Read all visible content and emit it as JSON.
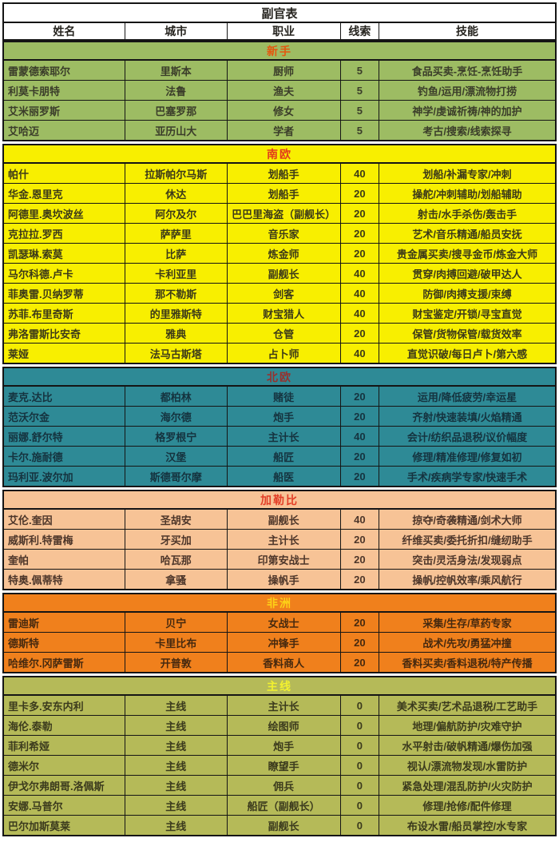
{
  "title": "副官表",
  "columns": [
    "姓名",
    "城市",
    "职业",
    "线索",
    "技能"
  ],
  "column_keys": [
    "cell-name",
    "cell-city",
    "cell-occupation",
    "cell-clue",
    "cell-skill"
  ],
  "border_color": "#151515",
  "sections": [
    {
      "name": "新手",
      "bg": "#9dbc63",
      "name_color": "#e4570f",
      "text_color": "#3b3d2a",
      "rows": [
        [
          "雷蒙德索耶尔",
          "里斯本",
          "厨师",
          "5",
          "食品买卖-烹饪-烹饪助手"
        ],
        [
          "利莫卡朋特",
          "法鲁",
          "渔夫",
          "5",
          "钓鱼/运用/漂流物打捞"
        ],
        [
          "艾米丽罗斯",
          "巴塞罗那",
          "修女",
          "5",
          "神学/虔诚祈祷/神的加护"
        ],
        [
          "艾哈迈",
          "亚历山大",
          "学者",
          "5",
          "考古/搜索/线索探寻"
        ]
      ]
    },
    {
      "name": "南欧",
      "bg": "#f8ef00",
      "name_color": "#e23c1c",
      "text_color": "#3c3a18",
      "rows": [
        [
          "帕什",
          "拉斯帕尔马斯",
          "划船手",
          "40",
          "划船/补漏专家/冲刺"
        ],
        [
          "华金.恩里克",
          "休达",
          "划船手",
          "20",
          "操舵/冲刺辅助/划船辅助"
        ],
        [
          "阿德里.奥坎波丝",
          "阿尔及尔",
          "巴巴里海盗（副舰长）",
          "20",
          "射击/水手杀伤/轰击手"
        ],
        [
          "克拉拉.罗西",
          "萨萨里",
          "音乐家",
          "20",
          "艺术/音乐精通/船员安抚"
        ],
        [
          "凯瑟琳.索莫",
          "比萨",
          "炼金师",
          "20",
          "贵金属买卖/搜寻金币/炼金大师"
        ],
        [
          "马尔科德.卢卡",
          "卡利亚里",
          "副舰长",
          "40",
          "贯穿/肉搏回避/破甲达人"
        ],
        [
          "菲奥雷.贝纳罗蒂",
          "那不勒斯",
          "剑客",
          "40",
          "防御/肉搏支援/束缚"
        ],
        [
          "苏菲.布里奇斯",
          "的里雅斯特",
          "财宝猎人",
          "40",
          "财宝鉴定/开锁/寻宝直觉"
        ],
        [
          "弗洛雷斯比安奇",
          "雅典",
          "仓管",
          "20",
          "保管/货物保管/载货效率"
        ],
        [
          "莱娅",
          "法马古斯塔",
          "占卜师",
          "40",
          "直觉识破/每日卢卜/第六感"
        ]
      ]
    },
    {
      "name": "北欧",
      "bg": "#2e8a96",
      "name_color": "#96322f",
      "text_color": "#15333f",
      "rows": [
        [
          "麦克.达比",
          "都柏林",
          "赌徒",
          "20",
          "运用/降低疲劳/幸运星"
        ],
        [
          "范沃尔金",
          "海尔德",
          "炮手",
          "20",
          "齐射/快速装填/火焰精通"
        ],
        [
          "丽娜.舒尔特",
          "格罗根宁",
          "主计长",
          "40",
          "会计/纺织品退税/议价幅度"
        ],
        [
          "卡尔.施耐德",
          "汉堡",
          "船匠",
          "20",
          "修理/精准修理/修复如初"
        ],
        [
          "玛利亚.波尔加",
          "斯德哥尔摩",
          "船医",
          "20",
          "手术/疾病学专家/快速手术"
        ]
      ]
    },
    {
      "name": "加勒比",
      "bg": "#f7c396",
      "name_color": "#e23d26",
      "text_color": "#4d362a",
      "rows": [
        [
          "艾伦.奎因",
          "圣胡安",
          "副舰长",
          "40",
          "掠夺/奇袭精通/剑术大师"
        ],
        [
          "威斯利.特雷梅",
          "牙买加",
          "主计长",
          "20",
          "纤维买卖/委托折扣/缝纫助手"
        ],
        [
          "奎帕",
          "哈瓦那",
          "印第安战士",
          "20",
          "突击/灵活身法/发现弱点"
        ],
        [
          "特奥.佩蒂特",
          "拿骚",
          "操帆手",
          "20",
          "操帆/控帆效率/乘风航行"
        ]
      ]
    },
    {
      "name": "非洲",
      "bg": "#f0801c",
      "name_color": "#fdd017",
      "text_color": "#46290f",
      "rows": [
        [
          "雷迪斯",
          "贝宁",
          "女战士",
          "20",
          "采集/生存/草药专家"
        ],
        [
          "德斯特",
          "卡里比布",
          "冲锋手",
          "20",
          "战术/先攻/勇猛冲撞"
        ],
        [
          "哈维尔.冈萨雷斯",
          "开普敦",
          "香料商人",
          "20",
          "香料买卖/香料退税/特产传播"
        ]
      ]
    },
    {
      "name": "主线",
      "bg": "#b5ba58",
      "name_color": "#f2f12f",
      "text_color": "#3b3a1d",
      "rows": [
        [
          "里卡多.安东内利",
          "主线",
          "主计长",
          "0",
          "美术买卖/艺术品退税/工艺助手"
        ],
        [
          "海伦.泰勒",
          "主线",
          "绘图师",
          "0",
          "地理/偏航防护/灾难守护"
        ],
        [
          "菲利希娅",
          "主线",
          "炮手",
          "0",
          "水平射击/破帆精通/爆伤加强"
        ],
        [
          "德米尔",
          "主线",
          "瞭望手",
          "0",
          "视认/漂流物发现/水雷防护"
        ],
        [
          "伊戈尔弗朗哥.洛佩斯",
          "主线",
          "佣兵",
          "0",
          "紧急处理/混乱防护/火灾防护"
        ],
        [
          "安娜.马普尔",
          "主线",
          "船匠（副舰长）",
          "0",
          "修理/抢修/配件修理"
        ],
        [
          "巴尔加斯莫莱",
          "主线",
          "副舰长",
          "0",
          "布设水雷/船员掌控/水专家"
        ]
      ]
    }
  ]
}
